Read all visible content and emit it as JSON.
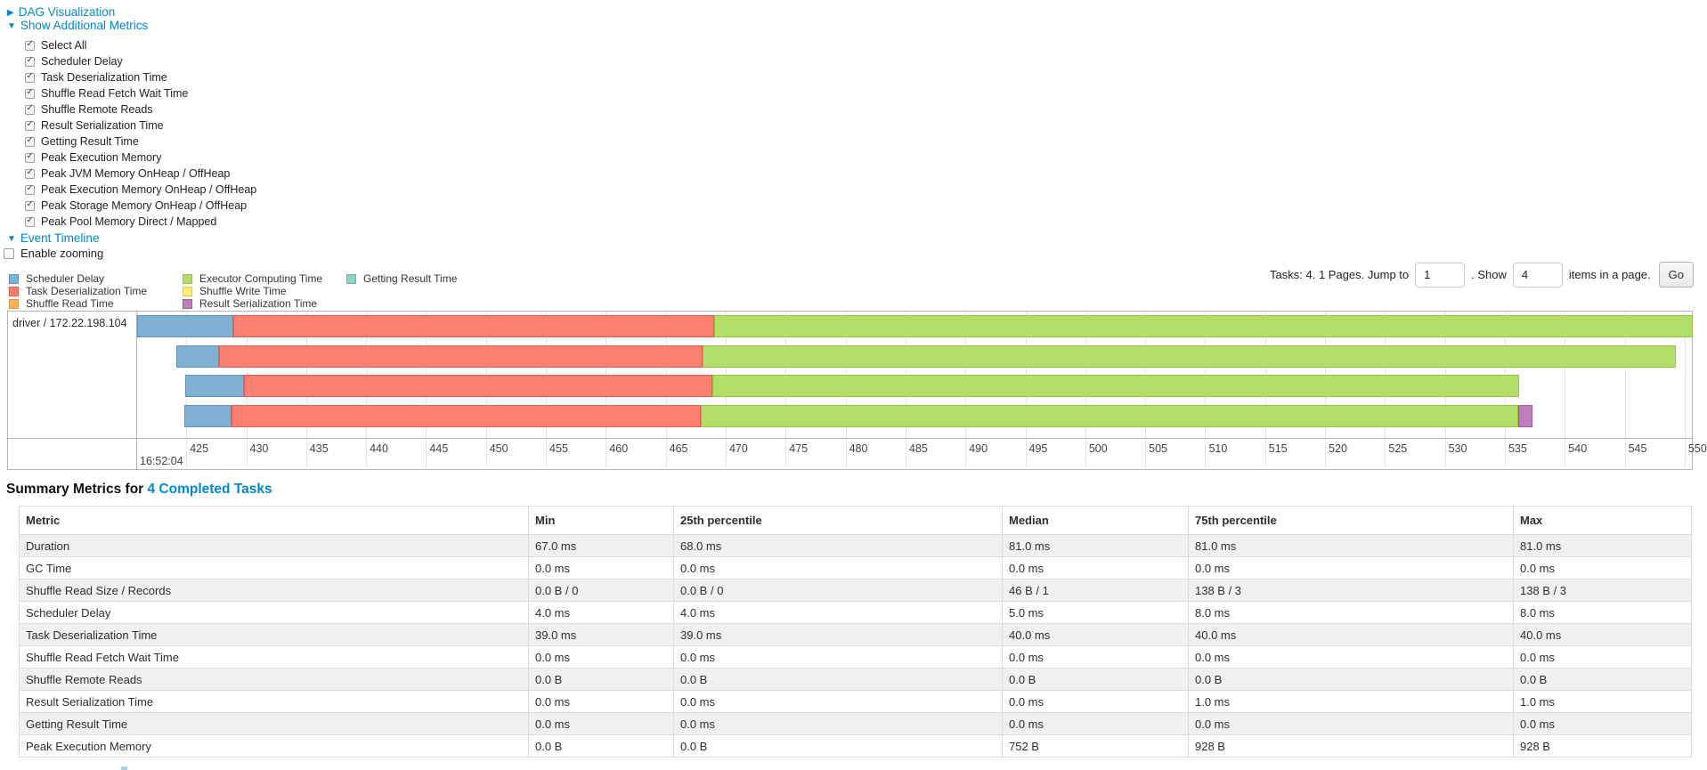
{
  "controls": {
    "dag": {
      "label": "DAG Visualization",
      "arrow": "▶"
    },
    "metrics_toggle": {
      "label": "Show Additional Metrics",
      "arrow": "▼"
    },
    "checkboxes": [
      "Select All",
      "Scheduler Delay",
      "Task Deserialization Time",
      "Shuffle Read Fetch Wait Time",
      "Shuffle Remote Reads",
      "Result Serialization Time",
      "Getting Result Time",
      "Peak Execution Memory",
      "Peak JVM Memory OnHeap / OffHeap",
      "Peak Execution Memory OnHeap / OffHeap",
      "Peak Storage Memory OnHeap / OffHeap",
      "Peak Pool Memory Direct / Mapped"
    ],
    "event_timeline": {
      "label": "Event Timeline",
      "arrow": "▼"
    },
    "enable_zooming": {
      "label": "Enable zooming",
      "checked": false
    }
  },
  "legend": {
    "items": [
      {
        "label": "Scheduler Delay",
        "type": "scheduler_delay",
        "col": 0,
        "row": 0
      },
      {
        "label": "Task Deserialization Time",
        "type": "task_deserialization",
        "col": 0,
        "row": 1
      },
      {
        "label": "Shuffle Read Time",
        "type": "shuffle_read",
        "col": 0,
        "row": 2
      },
      {
        "label": "Executor Computing Time",
        "type": "executor_computing",
        "col": 1,
        "row": 0
      },
      {
        "label": "Shuffle Write Time",
        "type": "shuffle_write",
        "col": 1,
        "row": 1
      },
      {
        "label": "Result Serialization Time",
        "type": "result_serialization",
        "col": 1,
        "row": 2
      },
      {
        "label": "Getting Result Time",
        "type": "getting_result",
        "col": 2,
        "row": 0
      }
    ]
  },
  "segment_colors": {
    "scheduler_delay": {
      "fill": "#80B1D3",
      "border": "#5f92bb"
    },
    "task_deserialization": {
      "fill": "#FB8072",
      "border": "#e05d50"
    },
    "shuffle_read": {
      "fill": "#FDB462",
      "border": "#e0923c"
    },
    "executor_computing": {
      "fill": "#B3DE69",
      "border": "#94c43f"
    },
    "shuffle_write": {
      "fill": "#FFED6F",
      "border": "#e3cc3f"
    },
    "result_serialization": {
      "fill": "#BC80BD",
      "border": "#9e5ba0"
    },
    "getting_result": {
      "fill": "#8DD3C7",
      "border": "#65b8a9"
    }
  },
  "pagination": {
    "prefix": "Tasks: 4. 1 Pages. Jump to",
    "jump_value": "1",
    "mid": ". Show",
    "show_value": "4",
    "suffix": "items in a page.",
    "go": "Go"
  },
  "timeline": {
    "group_label": "driver / 172.22.198.104",
    "axis": {
      "start": 420.9,
      "end": 550.6,
      "ticks": [
        425,
        430,
        435,
        440,
        445,
        450,
        455,
        460,
        465,
        470,
        475,
        480,
        485,
        490,
        495,
        500,
        505,
        510,
        515,
        520,
        525,
        530,
        535,
        540,
        545,
        550
      ],
      "time_label": "16:52:04"
    },
    "tasks": [
      {
        "segments": [
          {
            "type": "scheduler_delay",
            "start": 420.9,
            "end": 428.9
          },
          {
            "type": "task_deserialization",
            "start": 428.9,
            "end": 469.0
          },
          {
            "type": "executor_computing",
            "start": 469.0,
            "end": 550.7
          }
        ]
      },
      {
        "segments": [
          {
            "type": "scheduler_delay",
            "start": 424.2,
            "end": 427.7
          },
          {
            "type": "task_deserialization",
            "start": 427.7,
            "end": 468.1
          },
          {
            "type": "executor_computing",
            "start": 468.1,
            "end": 549.3
          }
        ]
      },
      {
        "segments": [
          {
            "type": "scheduler_delay",
            "start": 424.9,
            "end": 429.8
          },
          {
            "type": "task_deserialization",
            "start": 429.8,
            "end": 468.9
          },
          {
            "type": "executor_computing",
            "start": 468.9,
            "end": 536.2
          }
        ]
      },
      {
        "segments": [
          {
            "type": "scheduler_delay",
            "start": 424.8,
            "end": 428.8
          },
          {
            "type": "task_deserialization",
            "start": 428.8,
            "end": 467.9
          },
          {
            "type": "executor_computing",
            "start": 467.9,
            "end": 536.1
          },
          {
            "type": "result_serialization",
            "start": 536.1,
            "end": 537.3
          }
        ]
      }
    ]
  },
  "summary": {
    "title_prefix": "Summary Metrics for ",
    "title_link": "4 Completed Tasks",
    "table": {
      "headers": [
        "Metric",
        "Min",
        "25th percentile",
        "Median",
        "75th percentile",
        "Max"
      ],
      "rows": [
        [
          "Duration",
          "67.0 ms",
          "68.0 ms",
          "81.0 ms",
          "81.0 ms",
          "81.0 ms"
        ],
        [
          "GC Time",
          "0.0 ms",
          "0.0 ms",
          "0.0 ms",
          "0.0 ms",
          "0.0 ms"
        ],
        [
          "Shuffle Read Size / Records",
          "0.0 B / 0",
          "0.0 B / 0",
          "46 B / 1",
          "138 B / 3",
          "138 B / 3"
        ],
        [
          "Scheduler Delay",
          "4.0 ms",
          "4.0 ms",
          "5.0 ms",
          "8.0 ms",
          "8.0 ms"
        ],
        [
          "Task Deserialization Time",
          "39.0 ms",
          "39.0 ms",
          "40.0 ms",
          "40.0 ms",
          "40.0 ms"
        ],
        [
          "Shuffle Read Fetch Wait Time",
          "0.0 ms",
          "0.0 ms",
          "0.0 ms",
          "0.0 ms",
          "0.0 ms"
        ],
        [
          "Shuffle Remote Reads",
          "0.0 B",
          "0.0 B",
          "0.0 B",
          "0.0 B",
          "0.0 B"
        ],
        [
          "Result Serialization Time",
          "0.0 ms",
          "0.0 ms",
          "0.0 ms",
          "1.0 ms",
          "1.0 ms"
        ],
        [
          "Getting Result Time",
          "0.0 ms",
          "0.0 ms",
          "0.0 ms",
          "0.0 ms",
          "0.0 ms"
        ],
        [
          "Peak Execution Memory",
          "0.0 B",
          "0.0 B",
          "752 B",
          "928 B",
          "928 B"
        ]
      ]
    }
  },
  "colors": {
    "link": "#0088cc",
    "stripe": "#f0f0f2",
    "grid": "#e5e5e5",
    "box_border": "#b4b4b4"
  }
}
